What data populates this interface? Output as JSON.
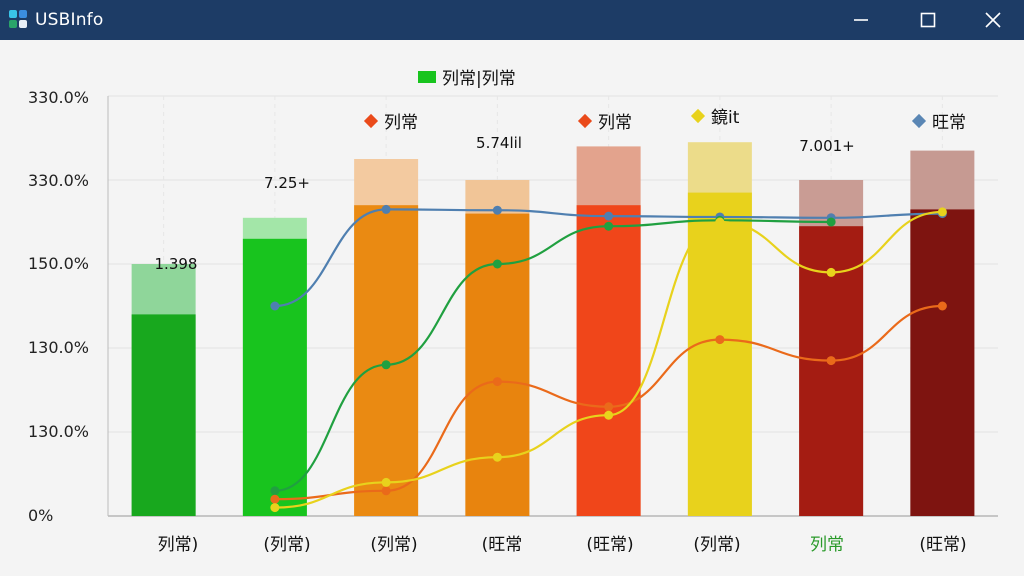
{
  "window": {
    "title": "USBInfo",
    "minimize_icon": "minimize-icon",
    "maximize_icon": "maximize-icon",
    "close_icon": "close-icon"
  },
  "legends": {
    "top": "列常|列常",
    "a": "列常",
    "b": "列常",
    "c": "鏡it",
    "d": "旺常"
  },
  "data_labels": [
    "1.398",
    "7.25+",
    "5.74lil",
    "7.001+"
  ],
  "chart_data": {
    "type": "bar",
    "categories": [
      "列常)",
      "(列常)",
      "(列常)",
      "(旺常",
      "(旺常)",
      "(列常)",
      "列常",
      "(旺常)"
    ],
    "y_tick_labels": [
      "0%",
      "130.0%",
      "130.0%",
      "150.0%",
      "330.0%",
      "330.0%"
    ],
    "values": [
      240,
      330,
      370,
      360,
      370,
      385,
      345,
      365
    ],
    "light_values": [
      300,
      355,
      425,
      400,
      440,
      445,
      400,
      435
    ],
    "bar_colors": [
      "#18a81e",
      "#18c41e",
      "#ea8a12",
      "#e8840e",
      "#f0461a",
      "#e8d21c",
      "#a41c12",
      "#7e1410"
    ],
    "light_colors": [
      "#8fd69a",
      "#a3e6a8",
      "#f3caa0",
      "#f1c597",
      "#e3a38d",
      "#ecdc8a",
      "#c99c94",
      "#c69a92"
    ],
    "ylim": [
      0,
      500
    ],
    "grid": true,
    "series": [
      {
        "color": "#4f7fb0",
        "values": [
          null,
          250,
          365,
          364,
          357,
          356,
          355,
          360
        ]
      },
      {
        "color": "#20a040",
        "values": [
          null,
          30,
          180,
          300,
          345,
          352,
          350,
          null
        ]
      },
      {
        "color": "#ea6a1a",
        "values": [
          null,
          20,
          30,
          160,
          130,
          210,
          185,
          250
        ]
      },
      {
        "color": "#e8d21c",
        "values": [
          null,
          10,
          40,
          70,
          120,
          350,
          290,
          362
        ]
      }
    ]
  }
}
